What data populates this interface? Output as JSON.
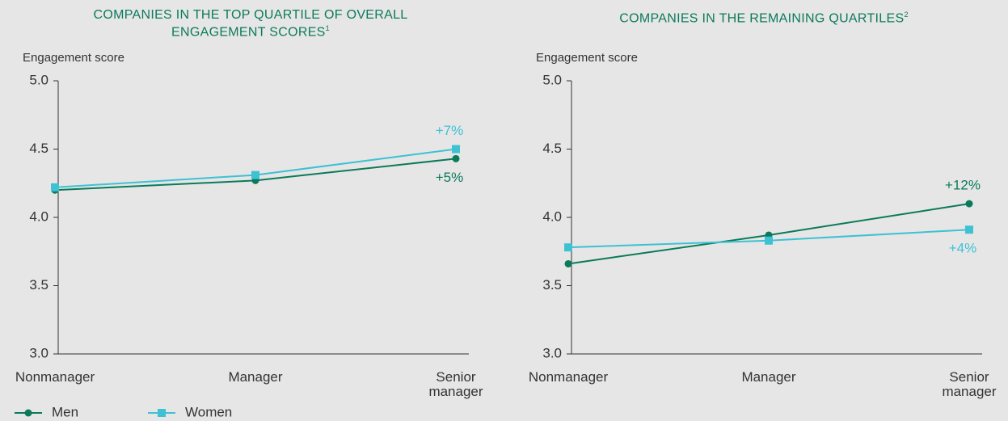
{
  "chart_data": [
    {
      "type": "line",
      "title": "COMPANIES IN THE TOP QUARTILE OF OVERALL ENGAGEMENT SCORES",
      "title_note": "1",
      "y_label": "Engagement score",
      "categories": [
        "Nonmanager",
        "Manager",
        "Senior manager"
      ],
      "series": [
        {
          "name": "Men",
          "color": "#0b7a5a",
          "marker": "circle",
          "values": [
            4.2,
            4.27,
            4.43
          ]
        },
        {
          "name": "Women",
          "color": "#3ec1d3",
          "marker": "square",
          "values": [
            4.22,
            4.31,
            4.5
          ]
        }
      ],
      "annotations": [
        {
          "text": "+7%",
          "series": 1
        },
        {
          "text": "+5%",
          "series": 0
        }
      ],
      "ylim": [
        3.0,
        5.0
      ],
      "yticks": [
        {
          "value": 3,
          "label": "3.0"
        },
        {
          "value": 3.5,
          "label": "3.5"
        },
        {
          "value": 4,
          "label": "4.0"
        },
        {
          "value": 4.5,
          "label": "4.5"
        },
        {
          "value": 5,
          "label": "5.0"
        }
      ]
    },
    {
      "type": "line",
      "title": "COMPANIES IN THE REMAINING QUARTILES",
      "title_note": "2",
      "y_label": "Engagement score",
      "categories": [
        "Nonmanager",
        "Manager",
        "Senior manager"
      ],
      "series": [
        {
          "color": "#0b7a5a",
          "marker": "circle",
          "values": [
            3.66,
            3.87,
            4.1
          ]
        },
        {
          "color": "#3ec1d3",
          "marker": "square",
          "values": [
            3.78,
            3.83,
            3.91
          ]
        }
      ],
      "annotations": [
        {
          "text": "+12%",
          "series": 0
        },
        {
          "text": "+4%",
          "series": 1
        }
      ],
      "ylim": [
        3.0,
        5.0
      ],
      "yticks": [
        {
          "value": 3,
          "label": "3.0"
        },
        {
          "value": 3.5,
          "label": "3.5"
        },
        {
          "value": 4,
          "label": "4.0"
        },
        {
          "value": 4.5,
          "label": "4.5"
        },
        {
          "value": 5,
          "label": "5.0"
        }
      ]
    }
  ]
}
